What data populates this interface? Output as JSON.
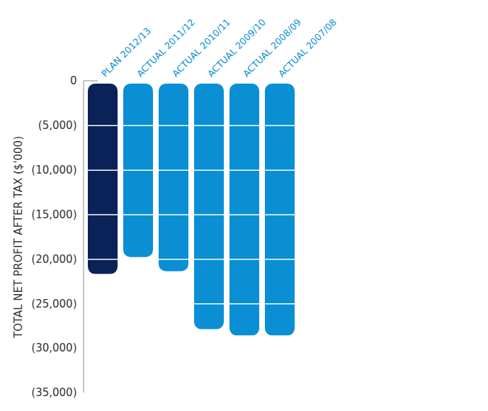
{
  "chart_data": {
    "type": "bar",
    "y_label": "TOTAL NET PROFIT AFTER TAX ($'000)",
    "categories": [
      "PLAN 2012/13",
      "ACTUAL 2011/12",
      "ACTUAL 2010/11",
      "ACTUAL 2009/10",
      "ACTUAL 2008/09",
      "ACTUAL 2007/08"
    ],
    "values": [
      -22000,
      -20100,
      -21700,
      -28200,
      -28900,
      -28900
    ],
    "colors": [
      "#0a2257",
      "#0a8fd4",
      "#0a8fd4",
      "#0a8fd4",
      "#0a8fd4",
      "#0a8fd4"
    ],
    "ylim": [
      -35000,
      0
    ],
    "yticks": [
      0,
      {
        "value": -5000,
        "label": "(5,000)"
      },
      {
        "value": -10000,
        "label": "(10,000)"
      },
      {
        "value": -15000,
        "label": "(15,000)"
      },
      {
        "value": -20000,
        "label": "(20,000)"
      },
      {
        "value": -25000,
        "label": "(25,000)"
      },
      {
        "value": -30000,
        "label": "(30,000)"
      },
      {
        "value": -35000,
        "label": "(35,000)"
      }
    ],
    "grid": true
  }
}
